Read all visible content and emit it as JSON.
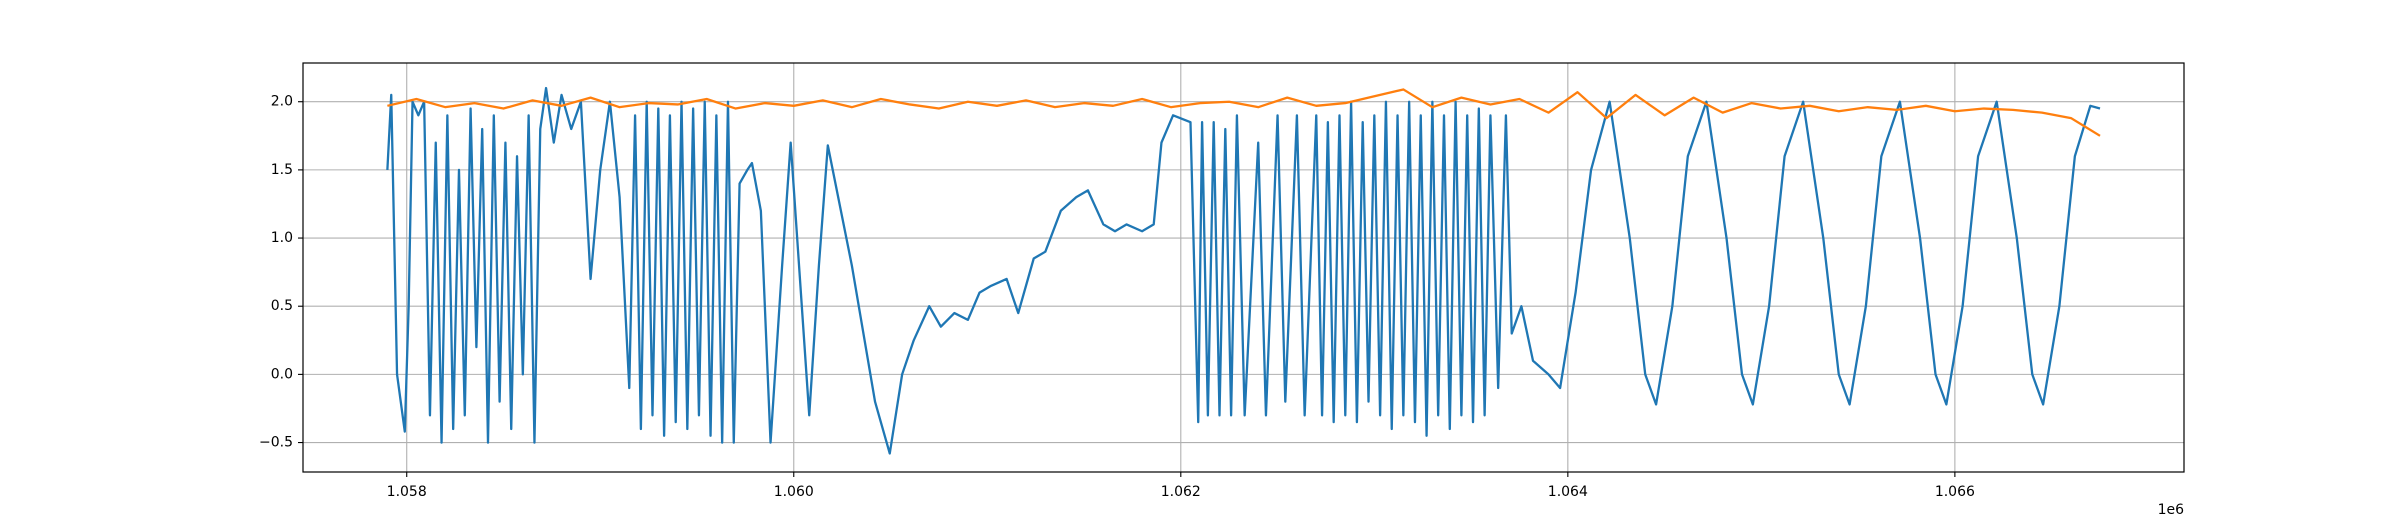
{
  "chart_data": {
    "type": "line",
    "x_offset_label": "1e6",
    "xlim": [
      1057464,
      1067184
    ],
    "ylim": [
      -0.716,
      2.284
    ],
    "xticks": [
      {
        "value": 1058000,
        "label": "1.058"
      },
      {
        "value": 1060000,
        "label": "1.060"
      },
      {
        "value": 1062000,
        "label": "1.062"
      },
      {
        "value": 1064000,
        "label": "1.064"
      },
      {
        "value": 1066000,
        "label": "1.066"
      }
    ],
    "yticks": [
      {
        "value": -0.5,
        "label": "−0.5"
      },
      {
        "value": 0,
        "label": "0.0"
      },
      {
        "value": 0.5,
        "label": "0.5"
      },
      {
        "value": 1,
        "label": "1.0"
      },
      {
        "value": 1.5,
        "label": "1.5"
      },
      {
        "value": 2,
        "label": "2.0"
      }
    ],
    "grid": true,
    "series": [
      {
        "color": "#1f77b4",
        "x": [
          1057900,
          1057920,
          1057950,
          1057990,
          1058010,
          1058030,
          1058060,
          1058090,
          1058120,
          1058150,
          1058180,
          1058210,
          1058240,
          1058270,
          1058300,
          1058330,
          1058360,
          1058390,
          1058420,
          1058450,
          1058480,
          1058510,
          1058540,
          1058570,
          1058600,
          1058630,
          1058660,
          1058690,
          1058720,
          1058760,
          1058800,
          1058850,
          1058900,
          1058950,
          1059000,
          1059050,
          1059100,
          1059150,
          1059180,
          1059210,
          1059240,
          1059270,
          1059300,
          1059330,
          1059360,
          1059390,
          1059420,
          1059450,
          1059480,
          1059510,
          1059540,
          1059570,
          1059600,
          1059630,
          1059660,
          1059690,
          1059720,
          1059760,
          1059784,
          1059830,
          1059880,
          1059940,
          1059984,
          1060080,
          1060130,
          1060176,
          1060300,
          1060420,
          1060496,
          1060560,
          1060620,
          1060700,
          1060760,
          1060830,
          1060900,
          1060960,
          1061020,
          1061100,
          1061160,
          1061240,
          1061300,
          1061380,
          1061460,
          1061520,
          1061600,
          1061660,
          1061720,
          1061800,
          1061860,
          1061900,
          1061960,
          1062050,
          1062090,
          1062110,
          1062140,
          1062170,
          1062200,
          1062230,
          1062260,
          1062290,
          1062330,
          1062400,
          1062440,
          1062500,
          1062540,
          1062600,
          1062640,
          1062700,
          1062730,
          1062760,
          1062790,
          1062820,
          1062850,
          1062880,
          1062910,
          1062940,
          1062970,
          1063000,
          1063030,
          1063060,
          1063090,
          1063120,
          1063150,
          1063180,
          1063210,
          1063240,
          1063270,
          1063300,
          1063330,
          1063360,
          1063390,
          1063420,
          1063450,
          1063480,
          1063510,
          1063540,
          1063570,
          1063600,
          1063640,
          1063680,
          1063710,
          1063760,
          1063820,
          1063900,
          1063960,
          1064040,
          1064120,
          1064216,
          1064320,
          1064400,
          1064456,
          1064540,
          1064620,
          1064716,
          1064820,
          1064900,
          1064956,
          1065040,
          1065120,
          1065216,
          1065320,
          1065400,
          1065456,
          1065540,
          1065620,
          1065716,
          1065820,
          1065900,
          1065956,
          1066040,
          1066120,
          1066216,
          1066320,
          1066400,
          1066456,
          1066540,
          1066620,
          1066700,
          1066750
        ],
        "values": [
          1.5,
          2.05,
          0.0,
          -0.42,
          0.5,
          2.0,
          1.9,
          2.0,
          -0.3,
          1.7,
          -0.5,
          1.9,
          -0.4,
          1.5,
          -0.3,
          1.95,
          0.2,
          1.8,
          -0.5,
          1.9,
          -0.2,
          1.7,
          -0.4,
          1.6,
          0.0,
          1.9,
          -0.5,
          1.8,
          2.1,
          1.7,
          2.05,
          1.8,
          2.0,
          0.7,
          1.5,
          2.0,
          1.3,
          -0.1,
          1.9,
          -0.4,
          2.0,
          -0.3,
          1.95,
          -0.45,
          1.9,
          -0.35,
          2.0,
          -0.4,
          1.95,
          -0.3,
          2.0,
          -0.45,
          1.9,
          -0.5,
          2.0,
          -0.5,
          1.4,
          1.5,
          1.55,
          1.2,
          -0.5,
          0.8,
          1.7,
          -0.3,
          0.8,
          1.68,
          0.8,
          -0.2,
          -0.58,
          0.0,
          0.25,
          0.5,
          0.35,
          0.45,
          0.4,
          0.6,
          0.65,
          0.7,
          0.45,
          0.85,
          0.9,
          1.2,
          1.3,
          1.35,
          1.1,
          1.05,
          1.1,
          1.05,
          1.1,
          1.7,
          1.9,
          1.85,
          -0.35,
          1.85,
          -0.3,
          1.85,
          -0.3,
          1.8,
          -0.3,
          1.9,
          -0.3,
          1.7,
          -0.3,
          1.9,
          -0.2,
          1.9,
          -0.3,
          1.9,
          -0.3,
          1.85,
          -0.35,
          1.9,
          -0.3,
          2.0,
          -0.35,
          1.85,
          -0.2,
          1.9,
          -0.3,
          2.0,
          -0.4,
          1.9,
          -0.3,
          2.0,
          -0.35,
          1.9,
          -0.45,
          2.0,
          -0.3,
          1.9,
          -0.4,
          2.0,
          -0.3,
          1.9,
          -0.35,
          1.95,
          -0.3,
          1.9,
          -0.1,
          1.9,
          0.3,
          0.5,
          0.1,
          0.0,
          -0.1,
          0.6,
          1.5,
          2.0,
          1.0,
          0.0,
          -0.22,
          0.5,
          1.6,
          2.0,
          1.0,
          0.0,
          -0.22,
          0.5,
          1.6,
          2.0,
          1.0,
          0.0,
          -0.22,
          0.5,
          1.6,
          2.0,
          1.0,
          0.0,
          -0.22,
          0.5,
          1.6,
          2.0,
          1.0,
          0.0,
          -0.22,
          0.5,
          1.6,
          1.97,
          1.95
        ]
      },
      {
        "color": "#ff7f0e",
        "x": [
          1057900,
          1058050,
          1058200,
          1058350,
          1058500,
          1058650,
          1058800,
          1058950,
          1059100,
          1059250,
          1059400,
          1059550,
          1059700,
          1059850,
          1060000,
          1060150,
          1060300,
          1060450,
          1060600,
          1060750,
          1060900,
          1061050,
          1061200,
          1061350,
          1061500,
          1061650,
          1061800,
          1061950,
          1062100,
          1062250,
          1062400,
          1062550,
          1062700,
          1062850,
          1063000,
          1063150,
          1063300,
          1063450,
          1063600,
          1063750,
          1063900,
          1064050,
          1064200,
          1064350,
          1064500,
          1064650,
          1064800,
          1064950,
          1065100,
          1065250,
          1065400,
          1065550,
          1065700,
          1065850,
          1066000,
          1066150,
          1066300,
          1066450,
          1066600,
          1066750
        ],
        "values": [
          1.97,
          2.02,
          1.96,
          1.99,
          1.95,
          2.01,
          1.97,
          2.03,
          1.96,
          1.99,
          1.98,
          2.02,
          1.95,
          1.99,
          1.97,
          2.01,
          1.96,
          2.02,
          1.98,
          1.95,
          2.0,
          1.97,
          2.01,
          1.96,
          1.99,
          1.97,
          2.02,
          1.96,
          1.99,
          2.0,
          1.96,
          2.03,
          1.97,
          1.99,
          2.04,
          2.09,
          1.96,
          2.03,
          1.98,
          2.02,
          1.92,
          2.07,
          1.88,
          2.05,
          1.9,
          2.03,
          1.92,
          1.99,
          1.95,
          1.97,
          1.93,
          1.96,
          1.94,
          1.97,
          1.93,
          1.95,
          1.94,
          1.92,
          1.88,
          1.75
        ]
      }
    ]
  }
}
